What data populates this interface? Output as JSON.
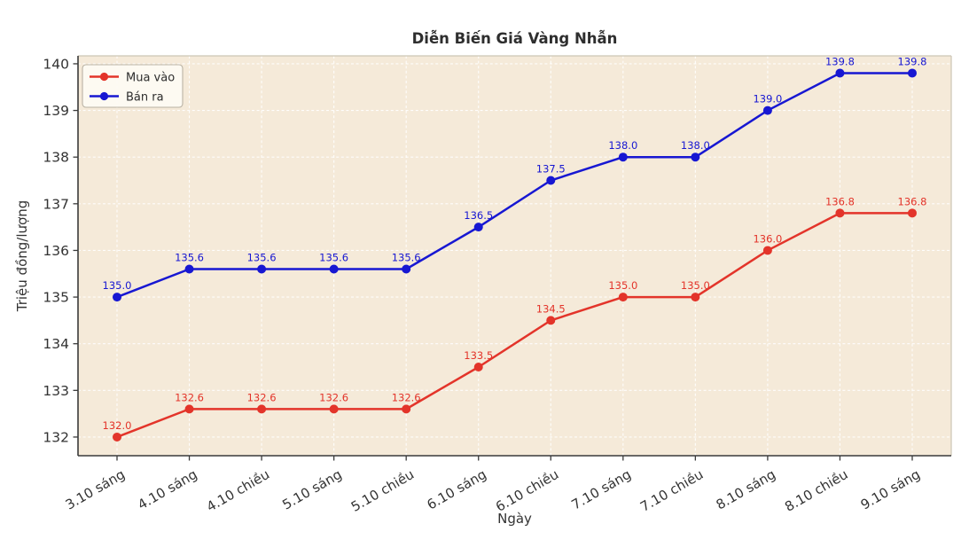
{
  "figure": {
    "title": "Diễn Biến Giá Vàng Nhẫn",
    "xlabel": "Ngày",
    "ylabel": "Triệu đồng/lượng"
  },
  "legend": {
    "position": "upper-left",
    "items": [
      {
        "label": "Mua vào",
        "color": "#e3342a"
      },
      {
        "label": "Bán ra",
        "color": "#1717d2"
      }
    ]
  },
  "colors": {
    "plot_background": "#f5ead9",
    "page_background": "#ffffff",
    "grid": "#ffffff",
    "spine_dark": "#3a3a3a",
    "spine_light": "#ccc5b5",
    "text": "#333333",
    "legend_background": "#fdfbf4",
    "legend_border": "#b9b2a4",
    "buy_series": "#e3342a",
    "sell_series": "#1717d2"
  },
  "chart_data": {
    "type": "line",
    "title": "Diễn Biến Giá Vàng Nhẫn",
    "xlabel": "Ngày",
    "ylabel": "Triệu đồng/lượng",
    "categories": [
      "3.10 sáng",
      "4.10 sáng",
      "4.10 chiều",
      "5.10 sáng",
      "5.10 chiều",
      "6.10 sáng",
      "6.10 chiều",
      "7.10 sáng",
      "7.10 chiều",
      "8.10 sáng",
      "8.10 chiều",
      "9.10 sáng"
    ],
    "series": [
      {
        "name": "Mua vào",
        "color": "#e3342a",
        "values": [
          132.0,
          132.6,
          132.6,
          132.6,
          132.6,
          133.5,
          134.5,
          135.0,
          135.0,
          136.0,
          136.8,
          136.8
        ]
      },
      {
        "name": "Bán ra",
        "color": "#1717d2",
        "values": [
          135.0,
          135.6,
          135.6,
          135.6,
          135.6,
          136.5,
          137.5,
          138.0,
          138.0,
          139.0,
          139.8,
          139.8
        ]
      }
    ],
    "yticks": [
      132,
      133,
      134,
      135,
      136,
      137,
      138,
      139,
      140
    ],
    "ylim": [
      131.6,
      140.17
    ],
    "grid": true,
    "grid_style": "dashed",
    "data_labels": true,
    "legend_position": "upper-left",
    "marker": "circle",
    "x_tick_rotation": 30
  }
}
